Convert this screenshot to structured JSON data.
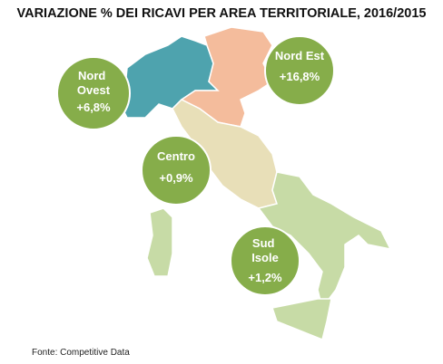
{
  "header": {
    "title": "VARIAZIONE % DEI RICAVI PER AREA TERRITORIALE, 2016/2015"
  },
  "regions": [
    {
      "name": "Nord Ovest",
      "value_label": "+6,8%"
    },
    {
      "name": "Nord Est",
      "value_label": "+16,8%"
    },
    {
      "name": "Centro",
      "value_label": "+0,9%"
    },
    {
      "name": "Sud Isole",
      "value_label": "+1,2%"
    }
  ],
  "footer": {
    "source": "Fonte: Competitive Data"
  }
}
